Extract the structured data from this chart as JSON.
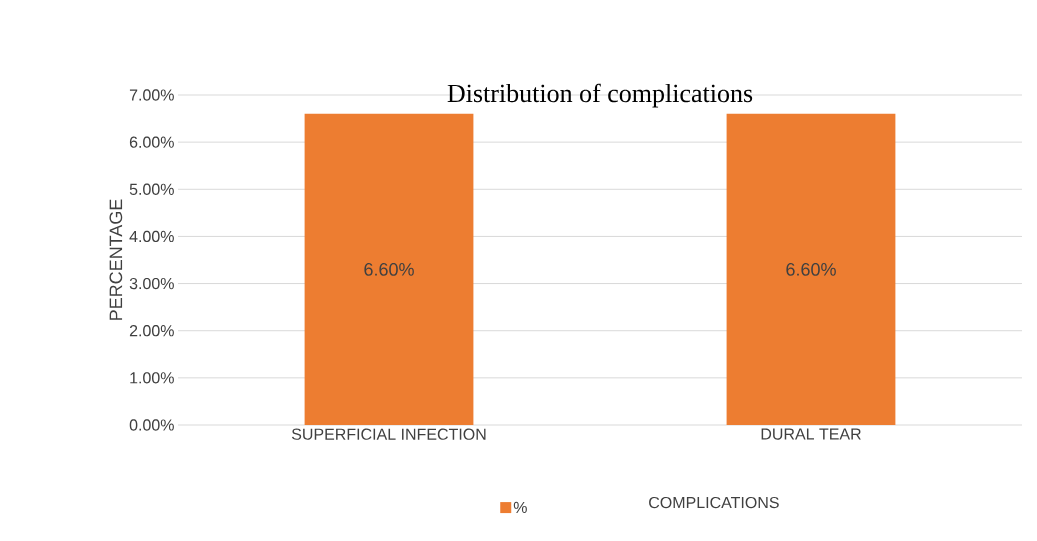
{
  "chart_data": {
    "type": "bar",
    "title": "Distribution of complications",
    "xlabel": "COMPLICATIONS",
    "ylabel": "PERCENTAGE",
    "categories": [
      "SUPERFICIAL INFECTION",
      "DURAL TEAR"
    ],
    "series": [
      {
        "name": "%",
        "color": "#ed7d31",
        "values": [
          6.6,
          6.6
        ],
        "value_labels": [
          "6.60%",
          "6.60%"
        ]
      }
    ],
    "ylim": [
      0,
      7
    ],
    "yticks": [
      {
        "value": 0,
        "label": "0.00%"
      },
      {
        "value": 1,
        "label": "1.00%"
      },
      {
        "value": 2,
        "label": "2.00%"
      },
      {
        "value": 3,
        "label": "3.00%"
      },
      {
        "value": 4,
        "label": "4.00%"
      },
      {
        "value": 5,
        "label": "5.00%"
      },
      {
        "value": 6,
        "label": "6.00%"
      },
      {
        "value": 7,
        "label": "7.00%"
      }
    ],
    "grid": "y",
    "legend": "bottom"
  }
}
